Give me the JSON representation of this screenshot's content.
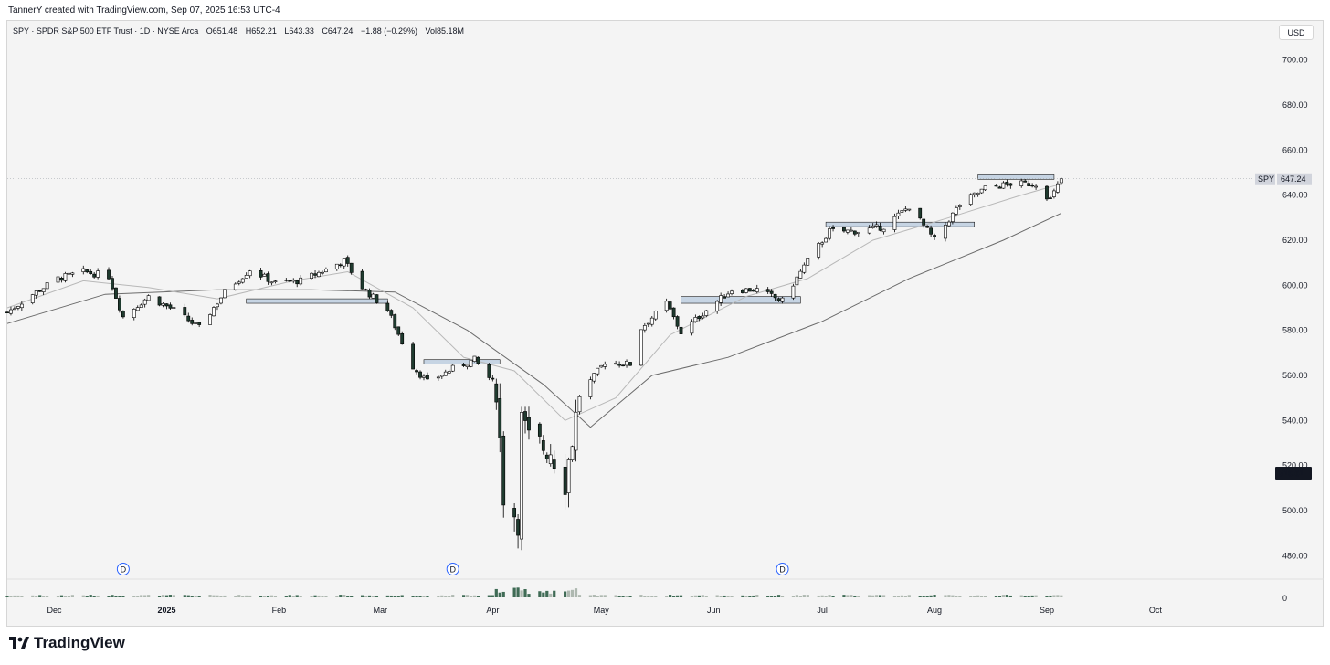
{
  "header": {
    "created_line": "TannerY created with TradingView.com, Sep 07, 2025 16:53 UTC-4"
  },
  "legend": {
    "symbol": "SPY · SPDR S&P 500 ETF Trust · 1D · NYSE Arca",
    "open": "O651.48",
    "high": "H652.21",
    "low": "L643.33",
    "close": "C647.24",
    "change": "−1.88 (−0.29%)",
    "volume": "Vol85.18M"
  },
  "currency_button": "USD",
  "price_tag": {
    "symbol": "SPY",
    "value": "647.24"
  },
  "crosshair_tag": "516.61",
  "volume_axis_label": "0",
  "dividend_marker": "D",
  "footer": {
    "brand": "TradingView"
  },
  "colors": {
    "up_fill": "#ffffff",
    "down_fill": "#1f3b2f",
    "candle_outline": "#000000",
    "sma_fast": "#b8b8b8",
    "sma_slow": "#6b6b6b",
    "zone_fill": "#b7c9de",
    "dividend_blue": "#2962ff",
    "volume_up": "#aeb8b0",
    "volume_down": "#3f6b55"
  },
  "chart_data": {
    "type": "candlestick",
    "title": "SPY · SPDR S&P 500 ETF Trust · 1D · NYSE Arca",
    "ylim": [
      470,
      712
    ],
    "y_ticks": [
      480,
      500,
      520,
      540,
      560,
      580,
      600,
      620,
      640,
      660,
      680,
      700
    ],
    "x_ticks": [
      "Dec",
      "2025",
      "Feb",
      "Mar",
      "Apr",
      "May",
      "Jun",
      "Jul",
      "Aug",
      "Sep",
      "Oct"
    ],
    "x_tick_dates": [
      "2024-12-01",
      "2025-01-01",
      "2025-02-01",
      "2025-03-01",
      "2025-04-01",
      "2025-05-01",
      "2025-06-01",
      "2025-07-01",
      "2025-08-01",
      "2025-09-01",
      "2025-10-01"
    ],
    "date_range": [
      "2024-11-18",
      "2025-10-28"
    ],
    "last_price": 647.24,
    "crosshair_price": 516.61,
    "price_series": [
      [
        "2024-11-18",
        588
      ],
      [
        "2024-11-25",
        596
      ],
      [
        "2024-12-02",
        603
      ],
      [
        "2024-12-09",
        606
      ],
      [
        "2024-12-16",
        604
      ],
      [
        "2024-12-20",
        586
      ],
      [
        "2024-12-27",
        595
      ],
      [
        "2025-01-03",
        589
      ],
      [
        "2025-01-10",
        581
      ],
      [
        "2025-01-17",
        597
      ],
      [
        "2025-01-24",
        607
      ],
      [
        "2025-01-31",
        601
      ],
      [
        "2025-02-07",
        602
      ],
      [
        "2025-02-14",
        607
      ],
      [
        "2025-02-19",
        611
      ],
      [
        "2025-02-24",
        599
      ],
      [
        "2025-03-03",
        589
      ],
      [
        "2025-03-10",
        564
      ],
      [
        "2025-03-14",
        557
      ],
      [
        "2025-03-21",
        563
      ],
      [
        "2025-03-27",
        567
      ],
      [
        "2025-04-02",
        555
      ],
      [
        "2025-04-04",
        507
      ],
      [
        "2025-04-08",
        496
      ],
      [
        "2025-04-09",
        540
      ],
      [
        "2025-04-11",
        531
      ],
      [
        "2025-04-17",
        527
      ],
      [
        "2025-04-21",
        513
      ],
      [
        "2025-04-25",
        551
      ],
      [
        "2025-05-02",
        566
      ],
      [
        "2025-05-09",
        565
      ],
      [
        "2025-05-12",
        581
      ],
      [
        "2025-05-19",
        592
      ],
      [
        "2025-05-23",
        579
      ],
      [
        "2025-05-30",
        589
      ],
      [
        "2025-06-06",
        598
      ],
      [
        "2025-06-13",
        598
      ],
      [
        "2025-06-20",
        593
      ],
      [
        "2025-06-27",
        611
      ],
      [
        "2025-07-03",
        624
      ],
      [
        "2025-07-11",
        624
      ],
      [
        "2025-07-18",
        626
      ],
      [
        "2025-07-25",
        635
      ],
      [
        "2025-08-01",
        620
      ],
      [
        "2025-08-08",
        636
      ],
      [
        "2025-08-15",
        643
      ],
      [
        "2025-08-22",
        645
      ],
      [
        "2025-08-29",
        645
      ],
      [
        "2025-09-02",
        638
      ],
      [
        "2025-09-05",
        647.24
      ]
    ],
    "sma_fast": [
      [
        "2024-11-18",
        590
      ],
      [
        "2024-12-09",
        602
      ],
      [
        "2024-12-27",
        599
      ],
      [
        "2025-01-15",
        594
      ],
      [
        "2025-02-05",
        602
      ],
      [
        "2025-02-20",
        606
      ],
      [
        "2025-03-10",
        590
      ],
      [
        "2025-03-24",
        568
      ],
      [
        "2025-04-07",
        562
      ],
      [
        "2025-04-21",
        540
      ],
      [
        "2025-05-05",
        550
      ],
      [
        "2025-05-20",
        578
      ],
      [
        "2025-06-10",
        595
      ],
      [
        "2025-06-27",
        603
      ],
      [
        "2025-07-15",
        620
      ],
      [
        "2025-08-05",
        630
      ],
      [
        "2025-08-25",
        640
      ],
      [
        "2025-09-05",
        645
      ]
    ],
    "sma_slow": [
      [
        "2024-11-18",
        583
      ],
      [
        "2024-12-15",
        596
      ],
      [
        "2025-01-15",
        598
      ],
      [
        "2025-02-10",
        598
      ],
      [
        "2025-03-05",
        597
      ],
      [
        "2025-03-25",
        580
      ],
      [
        "2025-04-15",
        556
      ],
      [
        "2025-04-28",
        537
      ],
      [
        "2025-05-15",
        560
      ],
      [
        "2025-06-05",
        568
      ],
      [
        "2025-07-01",
        584
      ],
      [
        "2025-07-25",
        603
      ],
      [
        "2025-08-20",
        620
      ],
      [
        "2025-09-05",
        632
      ]
    ],
    "zones": [
      {
        "from": "2025-01-23",
        "to": "2025-03-03",
        "low": 592,
        "high": 594
      },
      {
        "from": "2025-03-13",
        "to": "2025-04-03",
        "low": 565,
        "high": 567
      },
      {
        "from": "2025-05-23",
        "to": "2025-06-25",
        "low": 592,
        "high": 595
      },
      {
        "from": "2025-07-02",
        "to": "2025-08-12",
        "low": 626,
        "high": 628
      },
      {
        "from": "2025-08-13",
        "to": "2025-09-03",
        "low": 647,
        "high": 649
      }
    ],
    "dividends": [
      "2024-12-20",
      "2025-03-21",
      "2025-06-20"
    ],
    "volume_ylim": [
      0,
      30
    ]
  }
}
